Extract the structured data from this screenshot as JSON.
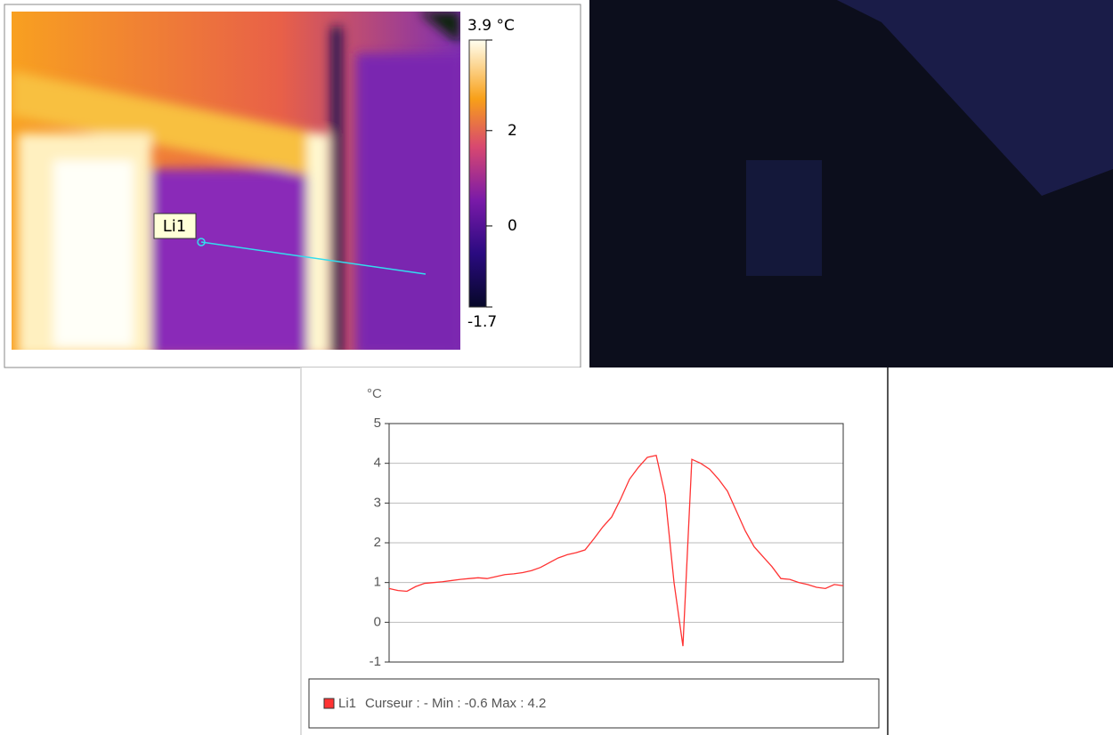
{
  "thermal_image": {
    "marker_label": "Li1",
    "colorbar": {
      "lim": [
        -1.7,
        3.9
      ],
      "ticks": [
        {
          "value": 3.9,
          "label": "3.9 °C"
        },
        2,
        0,
        -1.7
      ]
    }
  },
  "chart_data": {
    "type": "line",
    "y_label": "°C",
    "ylim": [
      -1,
      5
    ],
    "yticks": [
      -1,
      0,
      1,
      2,
      3,
      4,
      5
    ],
    "grid": true,
    "series": [
      {
        "name": "Li1",
        "color": "#ff3333",
        "values": [
          0.85,
          0.8,
          0.78,
          0.9,
          0.98,
          1.0,
          1.02,
          1.05,
          1.08,
          1.1,
          1.12,
          1.1,
          1.15,
          1.2,
          1.22,
          1.25,
          1.3,
          1.38,
          1.5,
          1.62,
          1.7,
          1.75,
          1.82,
          2.1,
          2.4,
          2.65,
          3.1,
          3.6,
          3.9,
          4.15,
          4.2,
          3.2,
          1.0,
          -0.6,
          4.1,
          4.0,
          3.85,
          3.6,
          3.3,
          2.8,
          2.3,
          1.9,
          1.65,
          1.4,
          1.1,
          1.08,
          1.0,
          0.95,
          0.88,
          0.85,
          0.95,
          0.92
        ]
      }
    ],
    "legend_text": "Curseur : - Min : -0.6 Max : 4.2"
  }
}
